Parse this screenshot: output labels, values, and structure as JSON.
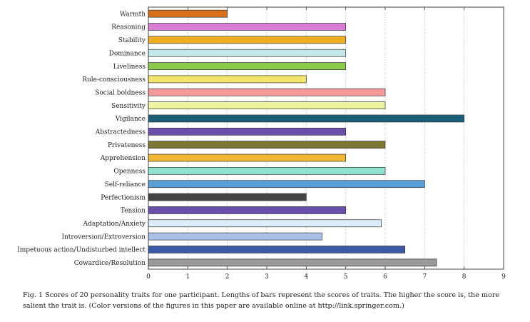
{
  "chart_data": {
    "type": "bar",
    "orientation": "horizontal",
    "categories": [
      "Warmth",
      "Reasoning",
      "Stability",
      "Dominance",
      "Liveliness",
      "Rule-consciousness",
      "Social boldness",
      "Sensitivity",
      "Vigilance",
      "Abstractedness",
      "Privateness",
      "Apprehension",
      "Openness",
      "Self-reliance",
      "Perfectionism",
      "Tension",
      "Adaptation/Anxiety",
      "Introversion/Extroversion",
      "Impetuous action/Undisturbed intellect",
      "Cowardice/Resolution"
    ],
    "values": [
      2,
      5,
      5,
      5,
      5,
      4,
      6,
      6,
      8,
      5,
      6,
      5,
      6,
      7,
      4,
      5,
      5.9,
      4.4,
      6.5,
      7.3
    ],
    "colors": [
      "#d86f1b",
      "#d87ed6",
      "#f0ad22",
      "#c5e8ec",
      "#8ccb4a",
      "#f3e46a",
      "#f49a9a",
      "#eef3a0",
      "#1b5e78",
      "#6a4fad",
      "#7b7630",
      "#f1b633",
      "#8fe3cf",
      "#5a9fd6",
      "#444444",
      "#6a4fad",
      "#ddecf8",
      "#aac0e6",
      "#3b5aa6",
      "#999999"
    ],
    "xlim": [
      0,
      9
    ],
    "xticks": [
      0,
      1,
      2,
      3,
      4,
      5,
      6,
      7,
      8,
      9
    ],
    "grid": true,
    "title": "",
    "xlabel": "",
    "ylabel": ""
  },
  "caption": "Fig. 1   Scores of 20 personality traits for one participant. Lengths of bars represent the scores of traits. The higher the score is, the more salient the trait is. (Color versions of the figures in this paper are available online at http://link.springer.com.)"
}
